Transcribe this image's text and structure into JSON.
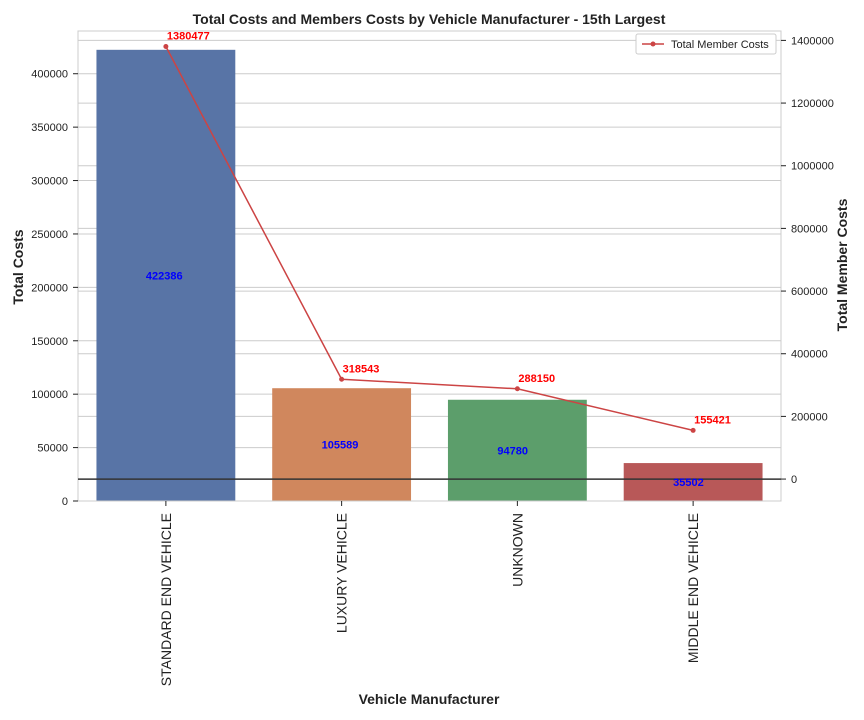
{
  "chart_data": {
    "type": "bar",
    "title": "Total Costs and Members Costs by Vehicle Manufacturer - 15th Largest",
    "xlabel": "Vehicle Manufacturer",
    "ylabel": "Total Costs",
    "y2label": "Total Member Costs",
    "categories": [
      "STANDARD END VEHICLE",
      "LUXURY VEHICLE",
      "UNKNOWN",
      "MIDDLE END VEHICLE"
    ],
    "series": [
      {
        "values": [
          422386,
          105589,
          94780,
          35502
        ],
        "value_labels": [
          "422386",
          "105589",
          "94780",
          "35502"
        ],
        "axis": "left",
        "mark": "bar",
        "colors": [
          "#5874a6",
          "#d0875d",
          "#5c9e6b",
          "#b85858"
        ]
      },
      {
        "name": "Total Member Costs",
        "values": [
          1380477,
          318543,
          288150,
          155421
        ],
        "value_labels": [
          "1380477",
          "318543",
          "288150",
          "155421"
        ],
        "axis": "right",
        "mark": "line",
        "color": "#cc4444"
      }
    ],
    "ylim": [
      0,
      440000
    ],
    "y2lim": [
      -70000,
      1430000
    ],
    "yticks": [
      0,
      50000,
      100000,
      150000,
      200000,
      250000,
      300000,
      350000,
      400000
    ],
    "ytick_labels": [
      "0",
      "50000",
      "100000",
      "150000",
      "200000",
      "250000",
      "300000",
      "350000",
      "400000"
    ],
    "y2ticks": [
      0,
      200000,
      400000,
      600000,
      800000,
      1000000,
      1200000,
      1400000
    ],
    "y2tick_labels": [
      "0",
      "200000",
      "400000",
      "600000",
      "800000",
      "1000000",
      "1200000",
      "1400000"
    ],
    "grid": true,
    "legend_position": "top-right",
    "reference_line_right_axis_value": 0,
    "reference_line_color": "#333333",
    "grid_color": "#cccccc",
    "frame_color": "#cccccc"
  }
}
